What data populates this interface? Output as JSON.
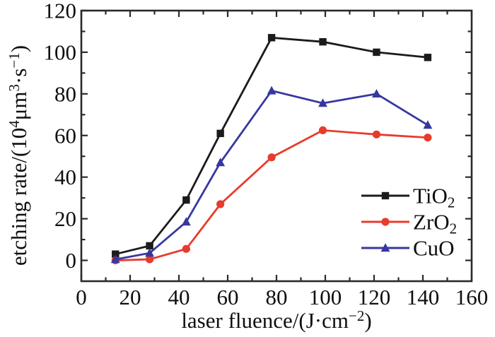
{
  "chart_data": {
    "type": "line",
    "title": "",
    "xlabel": "laser fluence/(J·cm−2)",
    "ylabel": "etching rate/(104μm3·s−1)",
    "xlabel_parts": [
      [
        "laser fluence/(J·cm",
        ""
      ],
      [
        "−2",
        "sup"
      ],
      [
        ")",
        ""
      ]
    ],
    "ylabel_parts": [
      [
        "etching rate/(10",
        ""
      ],
      [
        "4",
        "sup"
      ],
      [
        "μm",
        ""
      ],
      [
        "3",
        "sup"
      ],
      [
        "·s",
        ""
      ],
      [
        "−1",
        "sup"
      ],
      [
        ")",
        ""
      ]
    ],
    "x": [
      14,
      28,
      43,
      57,
      78,
      99,
      121,
      142
    ],
    "series": [
      {
        "name": "TiO2",
        "label_parts": [
          [
            "TiO",
            ""
          ],
          [
            "2",
            "sub"
          ]
        ],
        "color": "#1b1b1b",
        "marker": "square",
        "values": [
          3,
          7,
          29,
          61,
          107,
          105,
          100,
          97.5
        ]
      },
      {
        "name": "ZrO2",
        "label_parts": [
          [
            "ZrO",
            ""
          ],
          [
            "2",
            "sub"
          ]
        ],
        "color": "#e73c2c",
        "marker": "circle",
        "values": [
          0,
          0.5,
          5.5,
          27,
          49.5,
          62.5,
          60.5,
          59
        ]
      },
      {
        "name": "CuO",
        "label_parts": [
          [
            "CuO",
            ""
          ]
        ],
        "color": "#3737a0",
        "marker": "triangle",
        "values": [
          0.5,
          3.5,
          18.5,
          47,
          81.5,
          75.5,
          80,
          65
        ]
      }
    ],
    "xlim": [
      0,
      160
    ],
    "ylim": [
      -10,
      120
    ],
    "xticks": [
      0,
      20,
      40,
      60,
      80,
      100,
      120,
      140,
      160
    ],
    "yticks": [
      0,
      20,
      40,
      60,
      80,
      100,
      120
    ],
    "x_minor_step": 10,
    "y_minor_step": 10,
    "grid": false,
    "legend_position": "lower right",
    "axis_color": "#2a2a2a",
    "text_color": "#0f0f0f",
    "background": "#ffffff"
  }
}
